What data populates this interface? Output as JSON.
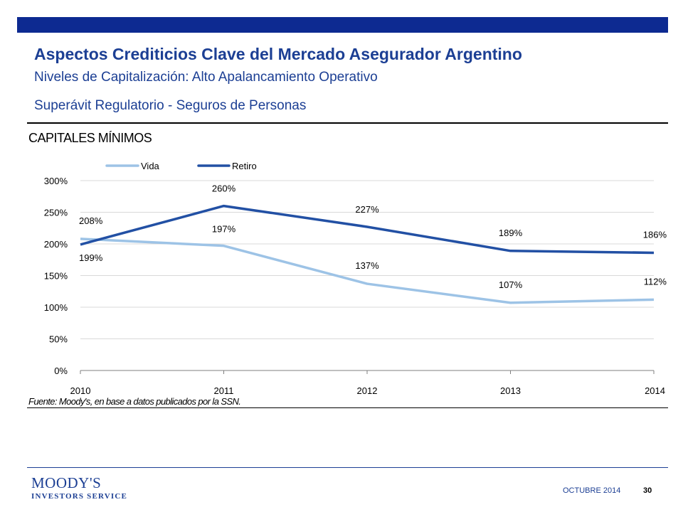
{
  "header": {
    "title": "Aspectos Crediticios Clave del Mercado Asegurador Argentino",
    "subtitle": "Niveles de Capitalización: Alto Apalancamiento Operativo",
    "section": "Superávit Regulatorio - Seguros de Personas"
  },
  "colors": {
    "bar": "#0d2a91",
    "heading": "#1c3f94",
    "vida": "#9dc3e6",
    "retiro": "#2250a4"
  },
  "chart_data": {
    "type": "line",
    "title": "CAPITALES MÍNIMOS",
    "x": [
      "2010",
      "2011",
      "2012",
      "2013",
      "2014"
    ],
    "series": [
      {
        "name": "Vida",
        "values": [
          208,
          197,
          137,
          107,
          112
        ],
        "labels": [
          "208%",
          "197%",
          "137%",
          "107%",
          "112%"
        ]
      },
      {
        "name": "Retiro",
        "values": [
          199,
          260,
          227,
          189,
          186
        ],
        "labels": [
          "199%",
          "260%",
          "227%",
          "189%",
          "186%"
        ]
      }
    ],
    "yticks": [
      "0%",
      "50%",
      "100%",
      "150%",
      "200%",
      "250%",
      "300%"
    ],
    "ylim": [
      0,
      300
    ],
    "grid": true,
    "legend": "top-left"
  },
  "source": "Fuente: Moody's, en base a datos publicados por la SSN.",
  "footer": {
    "logo_top": "MOODY'S",
    "logo_bottom": "INVESTORS SERVICE",
    "date": "OCTUBRE 2014",
    "page": "30"
  }
}
